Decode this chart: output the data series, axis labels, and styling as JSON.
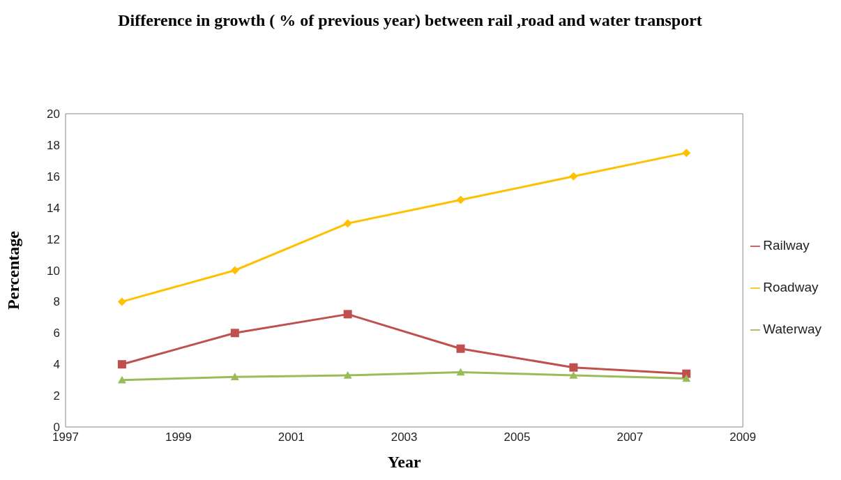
{
  "chart_data": {
    "type": "line",
    "title": "Difference in growth ( % of previous year) between rail ,road and water transport",
    "xlabel": "Year",
    "ylabel": "Percentage",
    "x": [
      1998,
      2000,
      2002,
      2004,
      2006,
      2008
    ],
    "series": [
      {
        "name": "Roadway",
        "color": "#ffc000",
        "marker": "diamond",
        "values": [
          8,
          10,
          13,
          14.5,
          16,
          17.5
        ]
      },
      {
        "name": "Railway",
        "color": "#c0504d",
        "marker": "square",
        "values": [
          4,
          6,
          7.2,
          5,
          3.8,
          3.4
        ]
      },
      {
        "name": "Waterway",
        "color": "#9bbb59",
        "marker": "triangle",
        "values": [
          3,
          3.2,
          3.3,
          3.5,
          3.3,
          3.1
        ]
      }
    ],
    "xlim": [
      1997,
      2009
    ],
    "xticks": [
      1997,
      1999,
      2001,
      2003,
      2005,
      2007,
      2009
    ],
    "ylim": [
      0,
      20
    ],
    "yticks": [
      0,
      2,
      4,
      6,
      8,
      10,
      12,
      14,
      16,
      18,
      20
    ],
    "grid": false,
    "legend": "right"
  }
}
